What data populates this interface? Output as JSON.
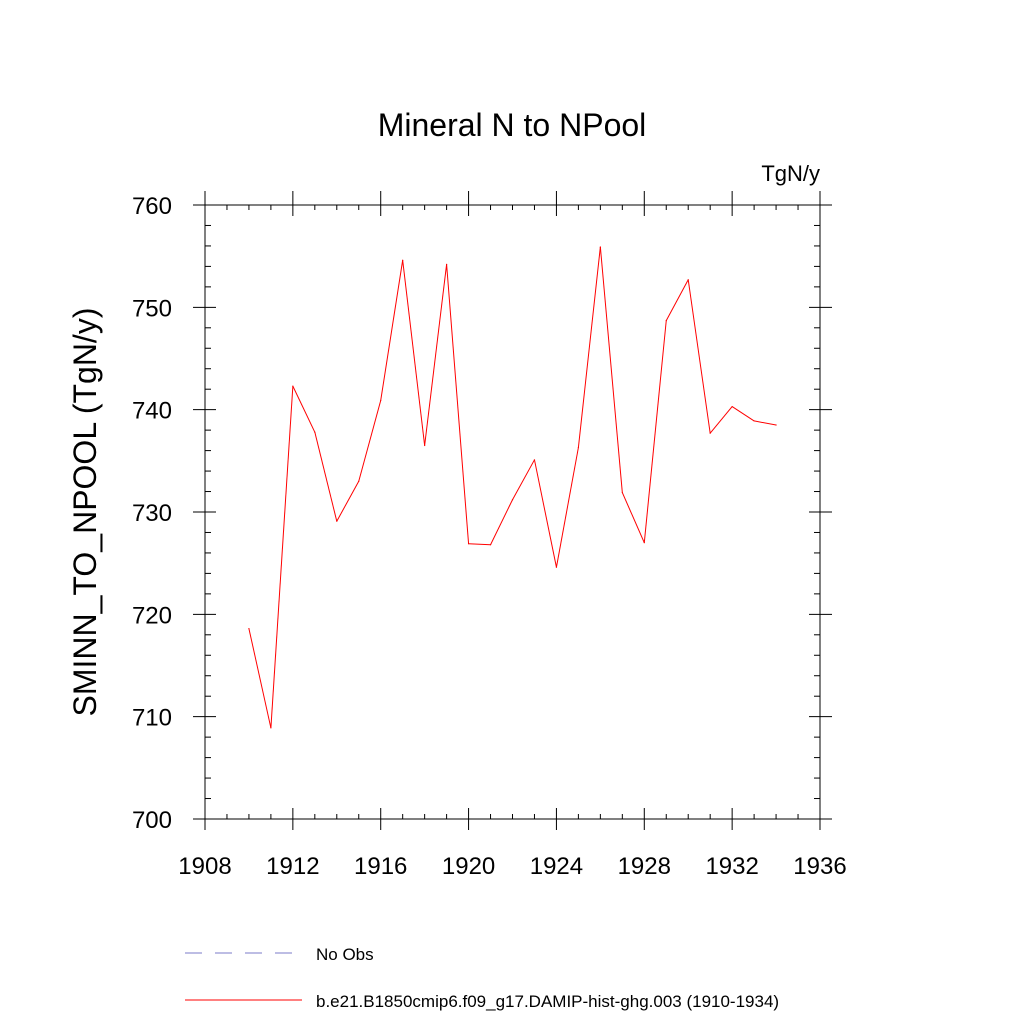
{
  "chart_data": {
    "type": "line",
    "title": "Mineral N to NPool",
    "units_label": "TgN/y",
    "ylabel": "SMINN_TO_NPOOL  (TgN/y)",
    "xlabel": "",
    "xlim": [
      1908,
      1936
    ],
    "ylim": [
      700,
      760
    ],
    "x_ticks": [
      1908,
      1912,
      1916,
      1920,
      1924,
      1928,
      1932,
      1936
    ],
    "y_ticks": [
      700,
      710,
      720,
      730,
      740,
      750,
      760
    ],
    "x_ticks_labels": [
      "1908",
      "1912",
      "1916",
      "1920",
      "1924",
      "1928",
      "1932",
      "1936"
    ],
    "y_ticks_labels": [
      "700",
      "710",
      "720",
      "730",
      "740",
      "750",
      "760"
    ],
    "grid": false,
    "legend_position": "bottom",
    "series": [
      {
        "name": "b.e21.B1850cmip6.f09_g17.DAMIP-hist-ghg.003 (1910-1934)",
        "color": "#ff0000",
        "style": "solid",
        "x": [
          1910,
          1911,
          1912,
          1913,
          1914,
          1915,
          1916,
          1917,
          1918,
          1919,
          1920,
          1921,
          1922,
          1923,
          1924,
          1925,
          1926,
          1927,
          1928,
          1929,
          1930,
          1931,
          1932,
          1933,
          1934
        ],
        "y": [
          718.6,
          708.9,
          742.3,
          737.8,
          729.1,
          733.0,
          740.9,
          754.6,
          736.5,
          754.2,
          726.9,
          726.8,
          731.2,
          735.1,
          724.6,
          736.3,
          755.9,
          731.9,
          727.0,
          748.7,
          752.7,
          737.7,
          740.3,
          738.9,
          738.5
        ]
      },
      {
        "name": "No Obs",
        "color": "#7b7bc8",
        "style": "dashed",
        "x": [],
        "y": []
      }
    ]
  }
}
